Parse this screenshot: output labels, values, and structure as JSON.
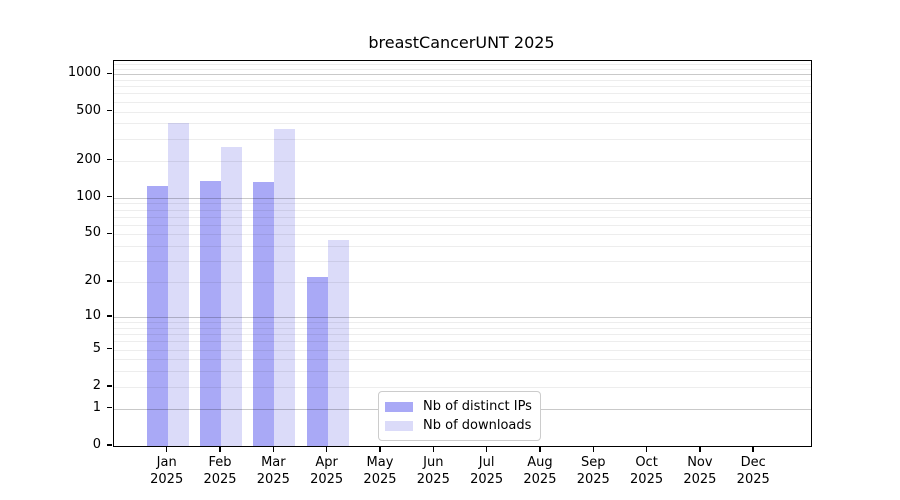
{
  "chart_data": {
    "type": "bar",
    "title": "breastCancerUNT 2025",
    "categories": [
      "Jan",
      "Feb",
      "Mar",
      "Apr",
      "May",
      "Jun",
      "Jul",
      "Aug",
      "Sep",
      "Oct",
      "Nov",
      "Dec"
    ],
    "x_year_label": "2025",
    "series": [
      {
        "name": "Nb of distinct IPs",
        "color": "#a9a9f6",
        "values": [
          125,
          136,
          133,
          22,
          0,
          0,
          0,
          0,
          0,
          0,
          0,
          0
        ]
      },
      {
        "name": "Nb of downloads",
        "color": "#dbdbf9",
        "values": [
          405,
          260,
          364,
          45,
          0,
          0,
          0,
          0,
          0,
          0,
          0,
          0
        ]
      }
    ],
    "yscale": "log1p",
    "ytick_labels": [
      0,
      1,
      2,
      5,
      10,
      20,
      50,
      100,
      200,
      500,
      1000
    ],
    "minor_gridlines": [
      2,
      3,
      4,
      5,
      6,
      7,
      8,
      9,
      20,
      30,
      40,
      50,
      60,
      70,
      80,
      90,
      200,
      300,
      400,
      500,
      600,
      700,
      800,
      900,
      1100,
      1200
    ],
    "major_gridlines": [
      1,
      10,
      100,
      1000
    ],
    "ylim": [
      0,
      1280
    ],
    "grid": true,
    "legend_position": "bottom-center",
    "colors": {
      "axis": "#000000",
      "grid_major": "#cccccc",
      "grid_minor": "#ededed",
      "background": "#ffffff"
    }
  }
}
